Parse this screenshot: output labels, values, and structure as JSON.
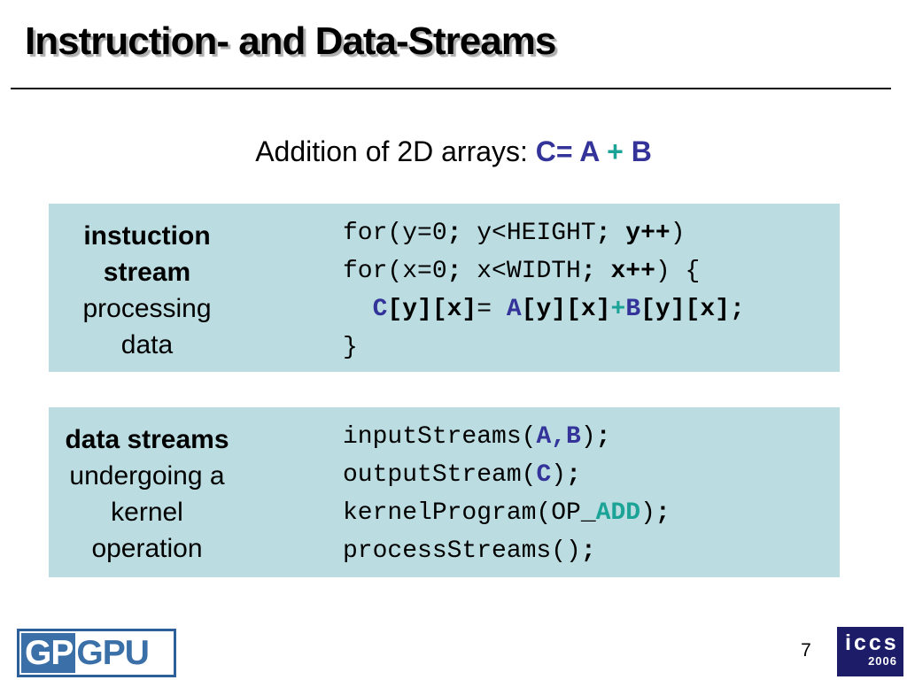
{
  "title": "Instruction- and Data-Streams",
  "subtitle": {
    "prefix": "Addition of 2D arrays: ",
    "c": "C= A",
    "plus": " + ",
    "b": "B"
  },
  "boxes": {
    "box1": {
      "labels": [
        {
          "t": "instuction",
          "bold": true
        },
        {
          "t": "stream",
          "bold": true
        },
        {
          "t": "processing",
          "bold": false
        },
        {
          "t": "data",
          "bold": false
        }
      ],
      "code": [
        [
          {
            "t": "for(y=0",
            "s": "p"
          },
          {
            "t": ";",
            "s": "pb"
          },
          {
            "t": " y<HEIGHT",
            "s": "p"
          },
          {
            "t": ";",
            "s": "pb"
          },
          {
            "t": " ",
            "s": "p"
          },
          {
            "t": "y++",
            "s": "pb"
          },
          {
            "t": ")",
            "s": "p"
          }
        ],
        [
          {
            "t": "for(x=0",
            "s": "p"
          },
          {
            "t": ";",
            "s": "pb"
          },
          {
            "t": " x<WIDTH",
            "s": "p"
          },
          {
            "t": ";",
            "s": "pb"
          },
          {
            "t": " ",
            "s": "p"
          },
          {
            "t": "x++",
            "s": "pb"
          },
          {
            "t": ") {",
            "s": "p"
          }
        ],
        [
          {
            "t": "  ",
            "s": "p"
          },
          {
            "t": "C",
            "s": "bl"
          },
          {
            "t": "[y][x]",
            "s": "pb"
          },
          {
            "t": "= ",
            "s": "p"
          },
          {
            "t": "A",
            "s": "bl"
          },
          {
            "t": "[y][x]",
            "s": "pb"
          },
          {
            "t": "+",
            "s": "tl"
          },
          {
            "t": "B",
            "s": "bl"
          },
          {
            "t": "[y][x]",
            "s": "pb"
          },
          {
            "t": ";",
            "s": "pb"
          }
        ],
        [
          {
            "t": "}",
            "s": "p"
          }
        ]
      ]
    },
    "box2": {
      "labels": [
        {
          "t": "data streams",
          "bold": true
        },
        {
          "t": "undergoing a",
          "bold": false
        },
        {
          "t": "kernel",
          "bold": false
        },
        {
          "t": "operation",
          "bold": false
        }
      ],
      "code": [
        [
          {
            "t": "inputStreams(",
            "s": "p"
          },
          {
            "t": "A,B",
            "s": "bl"
          },
          {
            "t": ")",
            "s": "p"
          },
          {
            "t": ";",
            "s": "pb"
          }
        ],
        [
          {
            "t": "outputStream(",
            "s": "p"
          },
          {
            "t": "C",
            "s": "bl"
          },
          {
            "t": ")",
            "s": "p"
          },
          {
            "t": ";",
            "s": "pb"
          }
        ],
        [
          {
            "t": "kernelProgram(OP_",
            "s": "p"
          },
          {
            "t": "ADD",
            "s": "tl"
          },
          {
            "t": ")",
            "s": "p"
          },
          {
            "t": ";",
            "s": "pb"
          }
        ],
        [
          {
            "t": "processStreams()",
            "s": "p"
          },
          {
            "t": ";",
            "s": "pb"
          }
        ]
      ]
    }
  },
  "footer": {
    "page_number": "7",
    "gpgpu": {
      "left": "GP",
      "right": "GPU"
    },
    "iccs": {
      "name": "iccs",
      "year": "2006"
    }
  },
  "colors": {
    "box_bg": "#bbdde2",
    "code_blue": "#333399",
    "teal": "#1aa396",
    "gpgpu_blue": "#3a6fa8",
    "gpgpu_border": "#2d5f9b",
    "iccs_navy": "#1d1c68"
  }
}
